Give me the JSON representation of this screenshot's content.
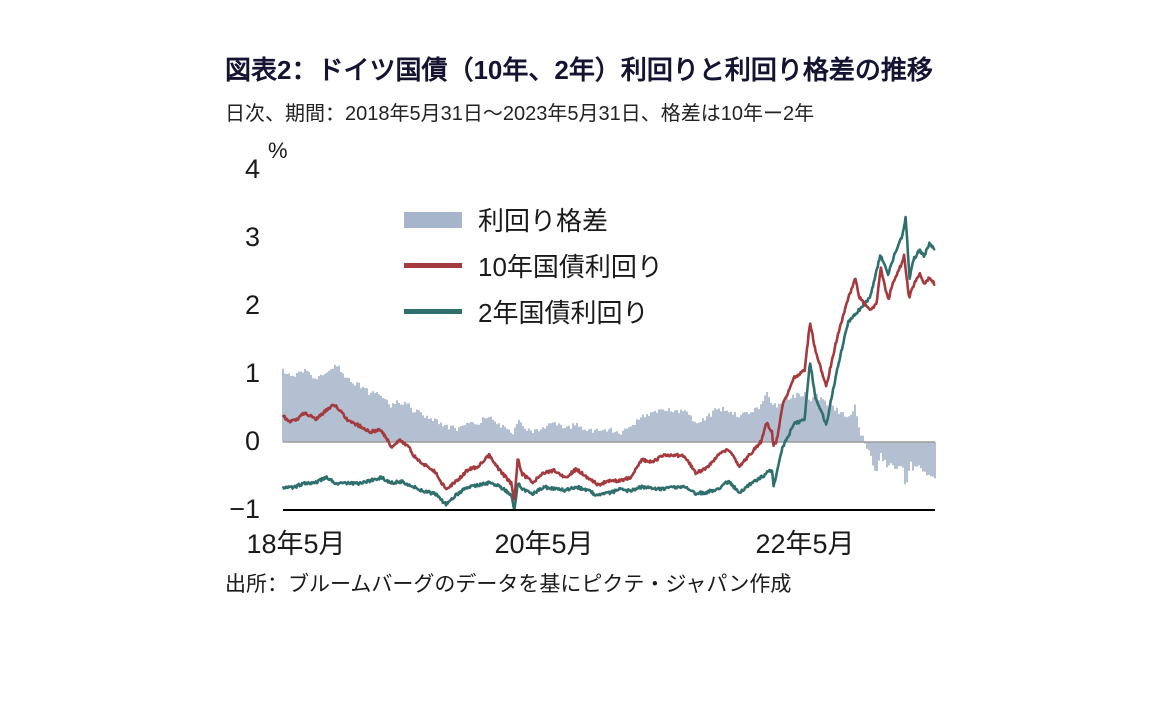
{
  "header": {
    "title": "図表2：ドイツ国債（10年、2年）利回りと利回り格差の推移",
    "subtitle": "日次、期間：2018年5月31日～2023年5月31日、格差は10年ー2年"
  },
  "footer": {
    "source": "出所：ブルームバーグのデータを基にピクテ・ジャパン作成"
  },
  "chart_data": {
    "type": "line",
    "unit": "%",
    "ylim": [
      -1,
      4
    ],
    "yticks": [
      4,
      3,
      2,
      1,
      0,
      -1
    ],
    "ytick_labels": [
      "4",
      "3",
      "2",
      "1",
      "0",
      "−1"
    ],
    "xlim_months": [
      0,
      60
    ],
    "x_axis": {
      "tick_months": [
        0,
        24,
        48
      ],
      "tick_labels": [
        "18年5月",
        "20年5月",
        "22年5月"
      ]
    },
    "grid": "zero-line-only",
    "legend_position": "upper-left-inside",
    "legend": [
      {
        "label": "利回り格差",
        "kind": "bar",
        "color": "#a6b5ca"
      },
      {
        "label": "10年国債利回り",
        "kind": "line",
        "color": "#a43a3d"
      },
      {
        "label": "2年国債利回り",
        "kind": "line",
        "color": "#2f6f6d"
      }
    ],
    "series": [
      {
        "id": "bund10",
        "name": "10年国債利回り",
        "kind": "line",
        "color": "#a43a3d",
        "points": [
          [
            0,
            0.38
          ],
          [
            0.7,
            0.3
          ],
          [
            1.5,
            0.36
          ],
          [
            2,
            0.44
          ],
          [
            3,
            0.33
          ],
          [
            4,
            0.47
          ],
          [
            4.8,
            0.55
          ],
          [
            5.5,
            0.42
          ],
          [
            6,
            0.31
          ],
          [
            7,
            0.24
          ],
          [
            8,
            0.15
          ],
          [
            9,
            0.18
          ],
          [
            10,
            -0.07
          ],
          [
            10.7,
            0.02
          ],
          [
            11.5,
            -0.05
          ],
          [
            12,
            -0.2
          ],
          [
            13,
            -0.33
          ],
          [
            14,
            -0.44
          ],
          [
            15,
            -0.7
          ],
          [
            16,
            -0.57
          ],
          [
            17,
            -0.41
          ],
          [
            18,
            -0.36
          ],
          [
            19,
            -0.19
          ],
          [
            19.5,
            -0.32
          ],
          [
            20,
            -0.43
          ],
          [
            21,
            -0.61
          ],
          [
            21.3,
            -0.86
          ],
          [
            21.6,
            -0.25
          ],
          [
            22,
            -0.47
          ],
          [
            23,
            -0.59
          ],
          [
            24,
            -0.45
          ],
          [
            25,
            -0.42
          ],
          [
            26,
            -0.52
          ],
          [
            27,
            -0.4
          ],
          [
            28,
            -0.52
          ],
          [
            29,
            -0.63
          ],
          [
            30,
            -0.57
          ],
          [
            31,
            -0.57
          ],
          [
            32,
            -0.52
          ],
          [
            33,
            -0.26
          ],
          [
            34,
            -0.29
          ],
          [
            35,
            -0.2
          ],
          [
            36,
            -0.19
          ],
          [
            37,
            -0.21
          ],
          [
            38,
            -0.46
          ],
          [
            39,
            -0.38
          ],
          [
            40,
            -0.2
          ],
          [
            41,
            -0.11
          ],
          [
            42,
            -0.35
          ],
          [
            43,
            -0.18
          ],
          [
            44,
            0.01
          ],
          [
            44.5,
            0.28
          ],
          [
            45,
            0.14
          ],
          [
            45.1,
            -0.05
          ],
          [
            45.4,
            0.0
          ],
          [
            46,
            0.55
          ],
          [
            47,
            0.94
          ],
          [
            48,
            1.05
          ],
          [
            48.5,
            1.76
          ],
          [
            49,
            1.34
          ],
          [
            50,
            0.82
          ],
          [
            51,
            1.54
          ],
          [
            52,
            2.11
          ],
          [
            52.7,
            2.42
          ],
          [
            53,
            2.14
          ],
          [
            54,
            1.93
          ],
          [
            54.6,
            2.02
          ],
          [
            55,
            2.57
          ],
          [
            55.7,
            2.08
          ],
          [
            56,
            2.29
          ],
          [
            57,
            2.65
          ],
          [
            57.15,
            2.76
          ],
          [
            57.6,
            2.12
          ],
          [
            58,
            2.29
          ],
          [
            58.6,
            2.48
          ],
          [
            59,
            2.31
          ],
          [
            59.5,
            2.42
          ],
          [
            60,
            2.32
          ]
        ]
      },
      {
        "id": "bund2",
        "name": "2年国債利回り",
        "kind": "line",
        "color": "#2f6f6d",
        "points": [
          [
            0,
            -0.66
          ],
          [
            1,
            -0.67
          ],
          [
            2,
            -0.6
          ],
          [
            3,
            -0.6
          ],
          [
            4,
            -0.52
          ],
          [
            5,
            -0.62
          ],
          [
            6,
            -0.6
          ],
          [
            7,
            -0.61
          ],
          [
            8,
            -0.57
          ],
          [
            9,
            -0.52
          ],
          [
            10,
            -0.6
          ],
          [
            11,
            -0.58
          ],
          [
            12,
            -0.66
          ],
          [
            13,
            -0.73
          ],
          [
            14,
            -0.76
          ],
          [
            15,
            -0.92
          ],
          [
            16,
            -0.77
          ],
          [
            17,
            -0.66
          ],
          [
            18,
            -0.63
          ],
          [
            19,
            -0.6
          ],
          [
            20,
            -0.66
          ],
          [
            21,
            -0.77
          ],
          [
            21.3,
            -1.0
          ],
          [
            21.6,
            -0.6
          ],
          [
            22,
            -0.69
          ],
          [
            23,
            -0.76
          ],
          [
            24,
            -0.66
          ],
          [
            25,
            -0.69
          ],
          [
            26,
            -0.71
          ],
          [
            27,
            -0.66
          ],
          [
            28,
            -0.71
          ],
          [
            29,
            -0.79
          ],
          [
            30,
            -0.75
          ],
          [
            31,
            -0.7
          ],
          [
            32,
            -0.72
          ],
          [
            33,
            -0.66
          ],
          [
            34,
            -0.69
          ],
          [
            35,
            -0.69
          ],
          [
            36,
            -0.66
          ],
          [
            37,
            -0.67
          ],
          [
            38,
            -0.76
          ],
          [
            39,
            -0.74
          ],
          [
            40,
            -0.69
          ],
          [
            41,
            -0.58
          ],
          [
            42,
            -0.74
          ],
          [
            43,
            -0.62
          ],
          [
            44,
            -0.52
          ],
          [
            45,
            -0.4
          ],
          [
            45.15,
            -0.65
          ],
          [
            46,
            -0.07
          ],
          [
            47,
            0.26
          ],
          [
            48,
            0.34
          ],
          [
            48.5,
            1.18
          ],
          [
            49,
            0.65
          ],
          [
            50,
            0.26
          ],
          [
            51,
            1.07
          ],
          [
            52,
            1.76
          ],
          [
            53,
            1.94
          ],
          [
            54,
            2.12
          ],
          [
            55,
            2.76
          ],
          [
            55.7,
            2.45
          ],
          [
            56,
            2.64
          ],
          [
            57,
            3.03
          ],
          [
            57.3,
            3.32
          ],
          [
            57.65,
            2.41
          ],
          [
            58,
            2.68
          ],
          [
            58.6,
            2.82
          ],
          [
            59,
            2.73
          ],
          [
            59.5,
            2.93
          ],
          [
            60,
            2.82
          ]
        ]
      },
      {
        "id": "spread",
        "name": "利回り格差",
        "kind": "bar",
        "color": "#a6b5ca",
        "derived": "bund10 - bund2"
      }
    ]
  }
}
